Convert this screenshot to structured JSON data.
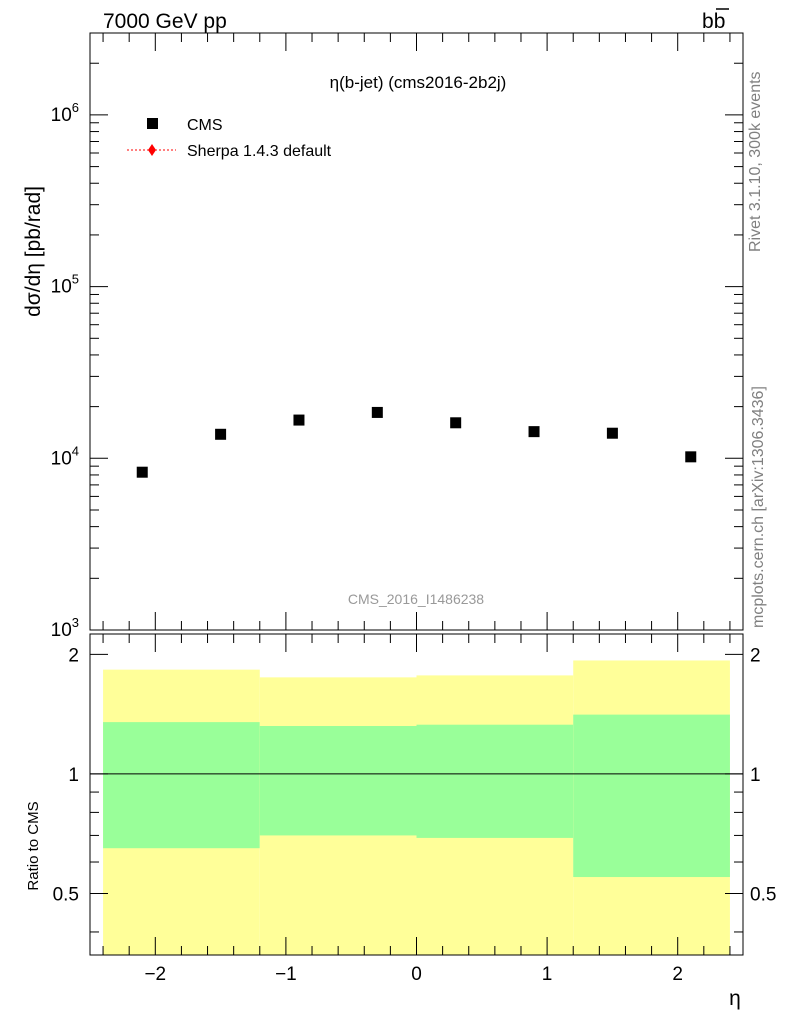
{
  "header": {
    "left": "7000 GeV pp",
    "right": "b",
    "right_bar": "b"
  },
  "side_labels": {
    "rivet": "Rivet 3.1.10,  300k events",
    "mcplots": "mcplots.cern.ch [arXiv:1306.3436]"
  },
  "chart_data": [
    {
      "type": "scatter",
      "title": "η(b-jet) (cms2016-2b2j)",
      "ylabel": "dσ/dη [pb/rad]",
      "yscale": "log",
      "ylim": [
        1000,
        3000000
      ],
      "xlim": [
        -2.5,
        2.5
      ],
      "watermark": "CMS_2016_I1486238",
      "legend_position": "top-left",
      "legend": [
        {
          "label": "CMS",
          "marker": "square",
          "color": "#000000"
        },
        {
          "label": "Sherpa 1.4.3 default",
          "marker": "diamond",
          "color": "#ff0000",
          "line": "dotted"
        }
      ],
      "y_ticks": [
        {
          "base": "10",
          "exp": "3",
          "value": 1000
        },
        {
          "base": "10",
          "exp": "4",
          "value": 10000
        },
        {
          "base": "10",
          "exp": "5",
          "value": 100000
        },
        {
          "base": "10",
          "exp": "6",
          "value": 1000000
        }
      ],
      "series": [
        {
          "name": "CMS",
          "x": [
            -2.1,
            -1.5,
            -0.9,
            -0.3,
            0.3,
            0.9,
            1.5,
            2.1
          ],
          "y": [
            8300,
            13800,
            16700,
            18500,
            16100,
            14300,
            14000,
            10200
          ]
        }
      ]
    },
    {
      "type": "area",
      "ylabel": "Ratio to CMS",
      "xlabel": "η",
      "xlim": [
        -2.5,
        2.5
      ],
      "ylim": [
        0.35,
        2.25
      ],
      "x_ticks": [
        "−2",
        "−1",
        "0",
        "1",
        "2"
      ],
      "x_tick_values": [
        -2,
        -1,
        0,
        1,
        2
      ],
      "y_ticks": [
        "0.5",
        "1",
        "2"
      ],
      "y_tick_values": [
        0.5,
        1,
        2
      ],
      "reference_line": 1,
      "bands": [
        {
          "x_low": -2.4,
          "x_high": -1.2,
          "inner_low": 0.65,
          "inner_high": 1.35,
          "outer_low": 0.35,
          "outer_high": 1.83
        },
        {
          "x_low": -1.2,
          "x_high": 0.0,
          "inner_low": 0.7,
          "inner_high": 1.32,
          "outer_low": 0.35,
          "outer_high": 1.75
        },
        {
          "x_low": 0.0,
          "x_high": 1.2,
          "inner_low": 0.69,
          "inner_high": 1.33,
          "outer_low": 0.35,
          "outer_high": 1.77
        },
        {
          "x_low": 1.2,
          "x_high": 2.4,
          "inner_low": 0.55,
          "inner_high": 1.41,
          "outer_low": 0.35,
          "outer_high": 1.93
        }
      ],
      "colors": {
        "inner": "#99ff99",
        "outer": "#ffff99"
      }
    }
  ]
}
